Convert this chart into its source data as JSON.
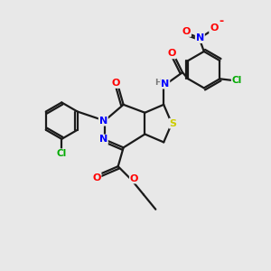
{
  "bg_color": "#e8e8e8",
  "bond_color": "#1a1a1a",
  "bond_width": 1.6,
  "atom_colors": {
    "N": "#0000ff",
    "O": "#ff0000",
    "S": "#cccc00",
    "Cl": "#00aa00",
    "H": "#777777",
    "C": "#1a1a1a"
  },
  "figsize": [
    3.0,
    3.0
  ],
  "dpi": 100
}
